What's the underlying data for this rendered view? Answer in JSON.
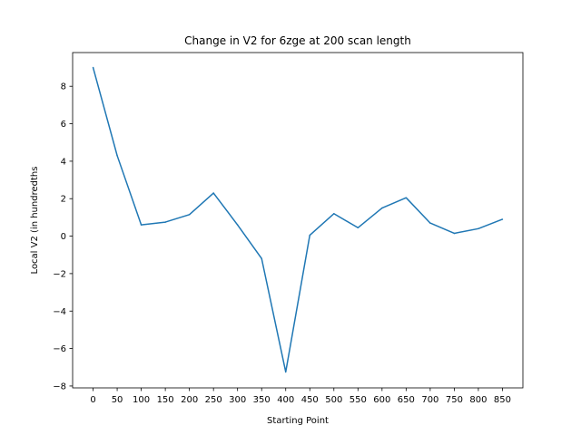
{
  "chart_data": {
    "type": "line",
    "title": "Change in V2 for 6zge at 200 scan length",
    "xlabel": "Starting Point",
    "ylabel": "Local V2 (in hundredths",
    "x": [
      0,
      50,
      100,
      150,
      200,
      250,
      300,
      350,
      400,
      450,
      500,
      550,
      600,
      650,
      700,
      750,
      800,
      850
    ],
    "series": [
      {
        "values": [
          9.0,
          4.3,
          0.6,
          0.75,
          1.15,
          2.3,
          0.6,
          -1.2,
          -7.25,
          0.05,
          1.2,
          0.45,
          1.5,
          2.05,
          0.7,
          0.15,
          0.4,
          0.9
        ],
        "color": "#1f77b4"
      }
    ],
    "xticks": [
      "0",
      "50",
      "100",
      "150",
      "200",
      "250",
      "300",
      "350",
      "400",
      "450",
      "500",
      "550",
      "600",
      "650",
      "700",
      "750",
      "800",
      "850"
    ],
    "yticks": [
      "−8",
      "−6",
      "−4",
      "−2",
      "0",
      "2",
      "4",
      "6",
      "8"
    ],
    "xlim": [
      -42.5,
      892.5
    ],
    "ylim": [
      -8.1,
      9.8
    ],
    "grid": false
  }
}
